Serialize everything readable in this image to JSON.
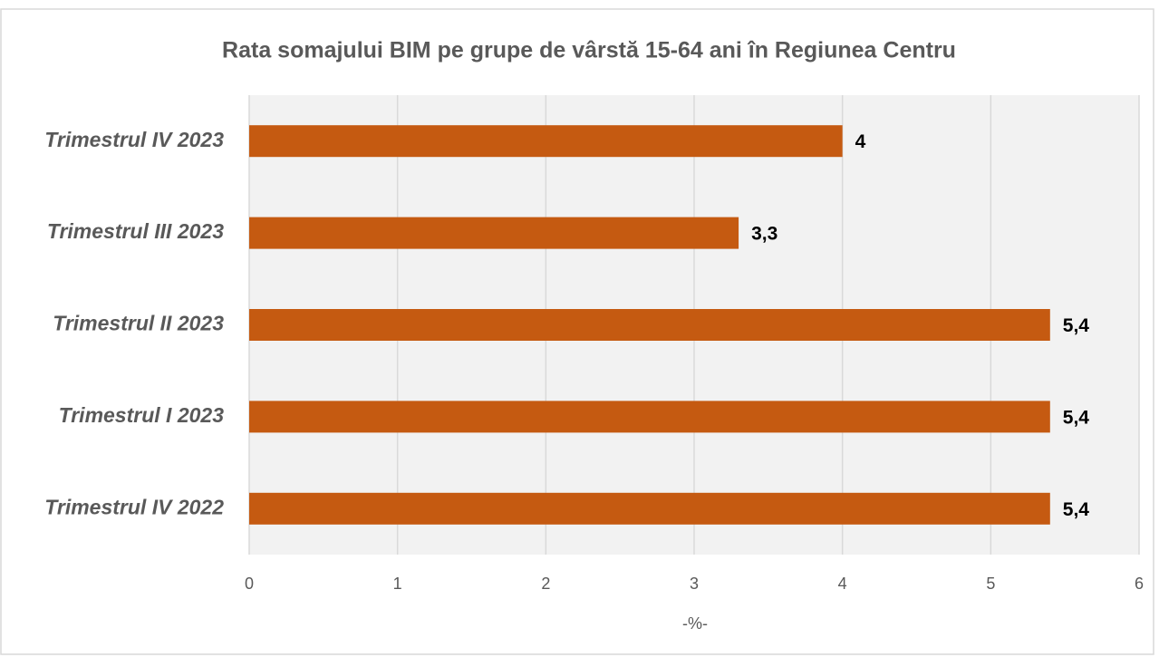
{
  "chart_data": {
    "type": "bar",
    "orientation": "horizontal",
    "title": "Rata somajului BIM pe grupe de vârstă 15-64 ani în Regiunea Centru",
    "categories": [
      "Trimestrul IV 2023",
      "Trimestrul III 2023",
      "Trimestrul II 2023",
      "Trimestrul I 2023",
      "Trimestrul IV 2022"
    ],
    "values": [
      4,
      3.3,
      5.4,
      5.4,
      5.4
    ],
    "value_labels": [
      "4",
      "3,3",
      "5,4",
      "5,4",
      "5,4"
    ],
    "color": "#c55a11",
    "xlim": [
      0,
      6
    ],
    "xticks": [
      0,
      1,
      2,
      3,
      4,
      5,
      6
    ],
    "xlabel": "-%-",
    "grid": true
  }
}
